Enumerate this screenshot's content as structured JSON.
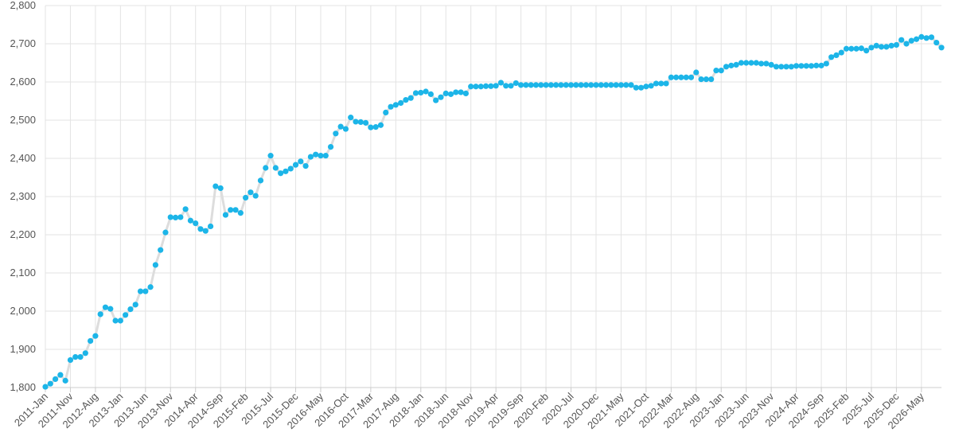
{
  "chart_data": {
    "type": "line",
    "categories": [
      "2011-Jan",
      null,
      null,
      null,
      null,
      "2011-Nov",
      null,
      null,
      null,
      null,
      "2012-Aug",
      null,
      null,
      null,
      null,
      "2013-Jan",
      null,
      null,
      null,
      null,
      "2013-Jun",
      null,
      null,
      null,
      null,
      "2013-Nov",
      null,
      null,
      null,
      null,
      "2014-Apr",
      null,
      null,
      null,
      null,
      "2014-Sep",
      null,
      null,
      null,
      null,
      "2015-Feb",
      null,
      null,
      null,
      null,
      "2015-Jul",
      null,
      null,
      null,
      null,
      "2015-Dec",
      null,
      null,
      null,
      null,
      "2016-May",
      null,
      null,
      null,
      null,
      "2016-Oct",
      null,
      null,
      null,
      null,
      "2017-Mar",
      null,
      null,
      null,
      null,
      "2017-Aug",
      null,
      null,
      null,
      null,
      "2018-Jan",
      null,
      null,
      null,
      null,
      "2018-Jun",
      null,
      null,
      null,
      null,
      "2018-Nov",
      null,
      null,
      null,
      null,
      "2019-Apr",
      null,
      null,
      null,
      null,
      "2019-Sep",
      null,
      null,
      null,
      null,
      "2020-Feb",
      null,
      null,
      null,
      null,
      "2020-Jul",
      null,
      null,
      null,
      null,
      "2020-Dec",
      null,
      null,
      null,
      null,
      "2021-May",
      null,
      null,
      null,
      null,
      "2021-Oct",
      null,
      null,
      null,
      null,
      "2022-Mar",
      null,
      null,
      null,
      null,
      "2022-Aug",
      null,
      null,
      null,
      null,
      "2023-Jan",
      null,
      null,
      null,
      null,
      "2023-Jun",
      null,
      null,
      null,
      null,
      "2023-Nov",
      null,
      null,
      null,
      null,
      "2024-Apr",
      null,
      null,
      null,
      null,
      "2024-Sep",
      null,
      null,
      null,
      null,
      "2025-Feb",
      null,
      null,
      null,
      null,
      "2025-Jul",
      null,
      null,
      null,
      null,
      "2025-Dec",
      null,
      null,
      null,
      null,
      "2026-May",
      null,
      null,
      null,
      null
    ],
    "series": [
      {
        "color": "#1cb5e8",
        "line_color": "#dddddd",
        "values": [
          1802,
          1810,
          1822,
          1833,
          1818,
          1872,
          1880,
          1880,
          1890,
          1922,
          1935,
          1992,
          2010,
          2006,
          1975,
          1975,
          1990,
          2005,
          2017,
          2052,
          2052,
          2063,
          2121,
          2160,
          2206,
          2246,
          2245,
          2246,
          2267,
          2237,
          2230,
          2215,
          2210,
          2222,
          2327,
          2322,
          2252,
          2265,
          2265,
          2257,
          2297,
          2311,
          2302,
          2342,
          2375,
          2407,
          2375,
          2361,
          2366,
          2373,
          2383,
          2392,
          2380,
          2404,
          2410,
          2407,
          2407,
          2430,
          2465,
          2483,
          2477,
          2507,
          2496,
          2495,
          2493,
          2481,
          2482,
          2487,
          2520,
          2535,
          2540,
          2545,
          2553,
          2558,
          2571,
          2572,
          2575,
          2568,
          2552,
          2560,
          2570,
          2568,
          2573,
          2573,
          2570,
          2588,
          2588,
          2588,
          2589,
          2589,
          2590,
          2598,
          2590,
          2590,
          2597,
          2592,
          2592,
          2592,
          2592,
          2592,
          2592,
          2592,
          2592,
          2592,
          2592,
          2592,
          2592,
          2592,
          2592,
          2592,
          2592,
          2592,
          2592,
          2592,
          2592,
          2592,
          2592,
          2592,
          2585,
          2585,
          2588,
          2590,
          2596,
          2596,
          2596,
          2612,
          2612,
          2612,
          2612,
          2612,
          2625,
          2607,
          2607,
          2607,
          2630,
          2630,
          2640,
          2643,
          2645,
          2650,
          2650,
          2650,
          2650,
          2648,
          2648,
          2645,
          2640,
          2640,
          2640,
          2640,
          2642,
          2642,
          2642,
          2642,
          2643,
          2643,
          2648,
          2665,
          2670,
          2677,
          2687,
          2687,
          2687,
          2688,
          2682,
          2690,
          2695,
          2692,
          2692,
          2695,
          2697,
          2710,
          2700,
          2708,
          2712,
          2718,
          2715,
          2717,
          2703,
          2690
        ]
      }
    ],
    "ylim": [
      1800,
      2800
    ],
    "yticks": [
      {
        "value": 1800,
        "label": "1,800"
      },
      {
        "value": 1900,
        "label": "1,900"
      },
      {
        "value": 2000,
        "label": "2,000"
      },
      {
        "value": 2100,
        "label": "2,100"
      },
      {
        "value": 2200,
        "label": "2,200"
      },
      {
        "value": 2300,
        "label": "2,300"
      },
      {
        "value": 2400,
        "label": "2,400"
      },
      {
        "value": 2500,
        "label": "2,500"
      },
      {
        "value": 2600,
        "label": "2,600"
      },
      {
        "value": 2700,
        "label": "2,700"
      },
      {
        "value": 2800,
        "label": "2,800"
      }
    ],
    "grid": true
  }
}
